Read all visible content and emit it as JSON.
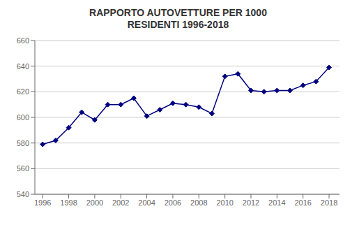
{
  "chart_data": {
    "type": "line",
    "title": "RAPPORTO AUTOVETTURE PER 1000\nRESIDENTI 1996-2018",
    "x": [
      1996,
      1997,
      1998,
      1999,
      2000,
      2001,
      2002,
      2003,
      2004,
      2005,
      2006,
      2007,
      2008,
      2009,
      2010,
      2011,
      2012,
      2013,
      2014,
      2015,
      2016,
      2017,
      2018
    ],
    "values": [
      579,
      582,
      592,
      604,
      598,
      610,
      610,
      615,
      601,
      606,
      611,
      610,
      608,
      603,
      632,
      634,
      621,
      620,
      621,
      621,
      625,
      628,
      639
    ],
    "color": "#000080",
    "marker": "diamond",
    "xlim": [
      1995.4,
      2018.8
    ],
    "xticks": [
      1996,
      1998,
      2000,
      2002,
      2004,
      2006,
      2008,
      2010,
      2012,
      2014,
      2016,
      2018
    ],
    "ylim": [
      540,
      660
    ],
    "yticks": [
      540,
      560,
      580,
      600,
      620,
      640,
      660
    ],
    "grid": true
  }
}
